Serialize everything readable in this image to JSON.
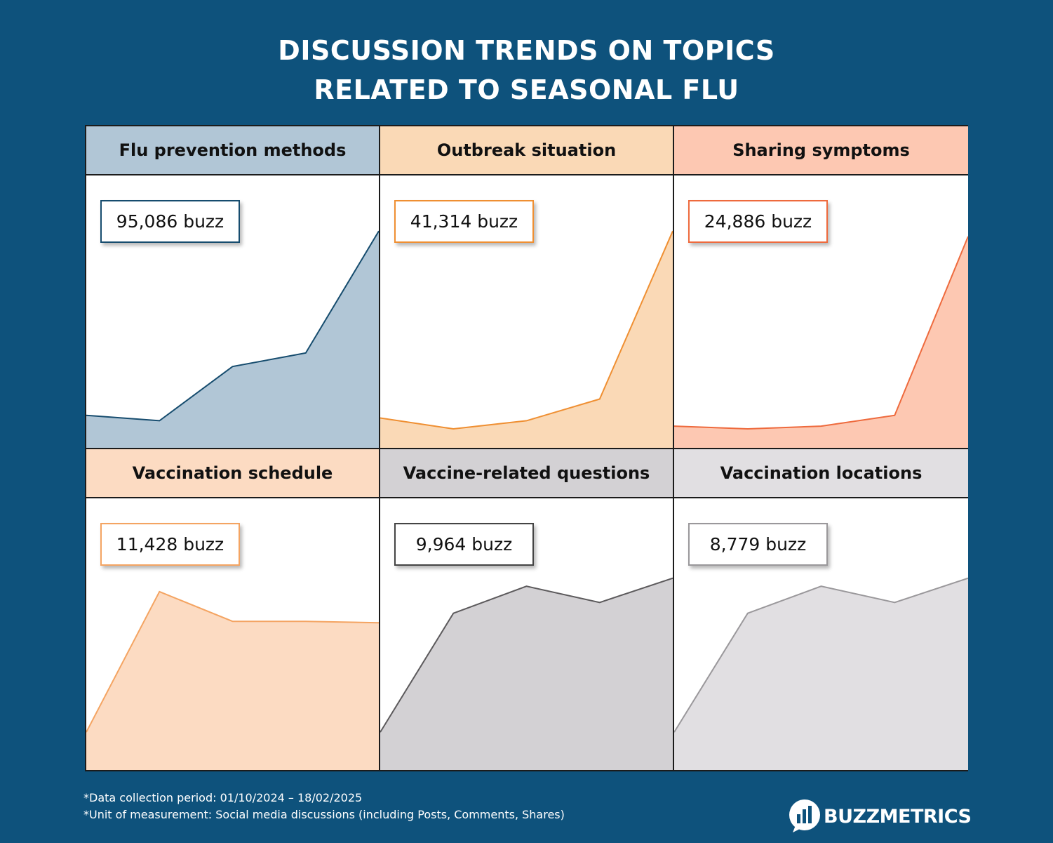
{
  "title": {
    "line1": "DISCUSSION TRENDS ON TOPICS",
    "line2": "RELATED TO SEASONAL FLU"
  },
  "chart_data": [
    {
      "type": "area",
      "title": "Flu prevention methods",
      "badge": "95,086 buzz",
      "values": [
        12,
        10,
        30,
        35,
        80
      ],
      "ylim": [
        0,
        100
      ],
      "line_color": "#164c6e",
      "fill_color": "#b1c6d6",
      "header_color": "#b1c6d6",
      "box_border": "#164c6e"
    },
    {
      "type": "area",
      "title": "Outbreak situation",
      "badge": "41,314 buzz",
      "values": [
        11,
        7,
        10,
        18,
        80
      ],
      "ylim": [
        0,
        100
      ],
      "line_color": "#ef8f32",
      "fill_color": "#fad9b6",
      "header_color": "#fad9b6",
      "box_border": "#ef8f32"
    },
    {
      "type": "area",
      "title": "Sharing symptoms",
      "badge": "24,886 buzz",
      "values": [
        8,
        7,
        8,
        12,
        78
      ],
      "ylim": [
        0,
        100
      ],
      "line_color": "#ee6a3d",
      "fill_color": "#fdc8b2",
      "header_color": "#fdc8b2",
      "box_border": "#ee6a3d"
    },
    {
      "type": "area",
      "title": "Vaccination schedule",
      "badge": "11,428 buzz",
      "values": [
        14,
        66,
        55,
        55,
        54.5
      ],
      "ylim": [
        0,
        100
      ],
      "line_color": "#f4a462",
      "fill_color": "#fcdbc2",
      "header_color": "#fcdbc2",
      "box_border": "#f4a462"
    },
    {
      "type": "area",
      "title": "Vaccine-related questions",
      "badge": "9,964 buzz",
      "values": [
        14,
        58,
        68,
        62,
        71
      ],
      "ylim": [
        0,
        100
      ],
      "line_color": "#5c5a5c",
      "fill_color": "#d3d1d4",
      "header_color": "#d3d1d4",
      "box_border": "#444444"
    },
    {
      "type": "area",
      "title": "Vaccination locations",
      "badge": "8,779 buzz",
      "values": [
        14,
        58,
        68,
        62,
        71
      ],
      "ylim": [
        0,
        100
      ],
      "line_color": "#9a989b",
      "fill_color": "#e1dfe2",
      "header_color": "#e1dfe2",
      "box_border": "#9a989b"
    }
  ],
  "footnotes": {
    "line1": "*Data collection period: 01/10/2024 – 18/02/2025",
    "line2": "*Unit of measurement: Social media discussions (including Posts, Comments, Shares)"
  },
  "logo": {
    "text": "BUZZMETRICS",
    "icon": "buzzmetrics-logo-icon"
  }
}
